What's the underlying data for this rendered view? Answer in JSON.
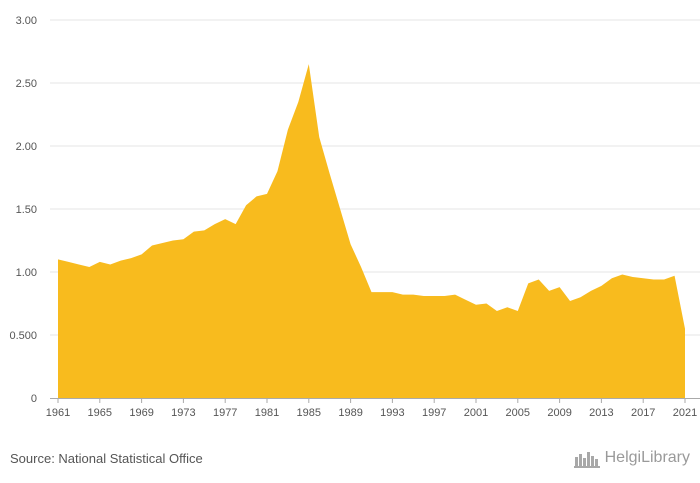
{
  "chart_data": {
    "type": "area",
    "title": "",
    "xlabel": "",
    "ylabel": "",
    "color": "#f8bb1e",
    "grid": true,
    "xlim": [
      1961,
      2021
    ],
    "ylim": [
      0,
      3
    ],
    "yticks": [
      0,
      0.5,
      1,
      1.5,
      2,
      2.5,
      3
    ],
    "ytick_labels": [
      "0",
      "0.500",
      "1.00",
      "1.50",
      "2.00",
      "2.50",
      "3.00"
    ],
    "xticks": [
      1961,
      1965,
      1969,
      1973,
      1977,
      1981,
      1985,
      1989,
      1993,
      1997,
      2001,
      2005,
      2009,
      2013,
      2017,
      2021
    ],
    "xtick_labels": [
      "1961",
      "1965",
      "1969",
      "1973",
      "1977",
      "1981",
      "1985",
      "1989",
      "1993",
      "1997",
      "2001",
      "2005",
      "2009",
      "2013",
      "2017",
      "2021"
    ],
    "x": [
      1961,
      1962,
      1963,
      1964,
      1965,
      1966,
      1967,
      1968,
      1969,
      1970,
      1971,
      1972,
      1973,
      1974,
      1975,
      1976,
      1977,
      1978,
      1979,
      1980,
      1981,
      1982,
      1983,
      1984,
      1985,
      1986,
      1987,
      1988,
      1989,
      1990,
      1991,
      1992,
      1993,
      1994,
      1995,
      1996,
      1997,
      1998,
      1999,
      2000,
      2001,
      2002,
      2003,
      2004,
      2005,
      2006,
      2007,
      2008,
      2009,
      2010,
      2011,
      2012,
      2013,
      2014,
      2015,
      2016,
      2017,
      2018,
      2019,
      2020,
      2021
    ],
    "values": [
      1.1,
      1.08,
      1.06,
      1.04,
      1.08,
      1.06,
      1.09,
      1.11,
      1.14,
      1.21,
      1.23,
      1.25,
      1.26,
      1.32,
      1.33,
      1.38,
      1.42,
      1.38,
      1.53,
      1.6,
      1.62,
      1.8,
      2.13,
      2.35,
      2.65,
      2.07,
      1.78,
      1.5,
      1.22,
      1.04,
      0.84,
      0.84,
      0.84,
      0.82,
      0.82,
      0.81,
      0.81,
      0.81,
      0.82,
      0.78,
      0.74,
      0.75,
      0.69,
      0.72,
      0.69,
      0.91,
      0.94,
      0.85,
      0.88,
      0.77,
      0.8,
      0.85,
      0.89,
      0.95,
      0.98,
      0.96,
      0.95,
      0.94,
      0.94,
      0.97,
      0.55
    ]
  },
  "footer": {
    "source": "Source: National Statistical Office",
    "logo_text": "HelgiLibrary"
  }
}
